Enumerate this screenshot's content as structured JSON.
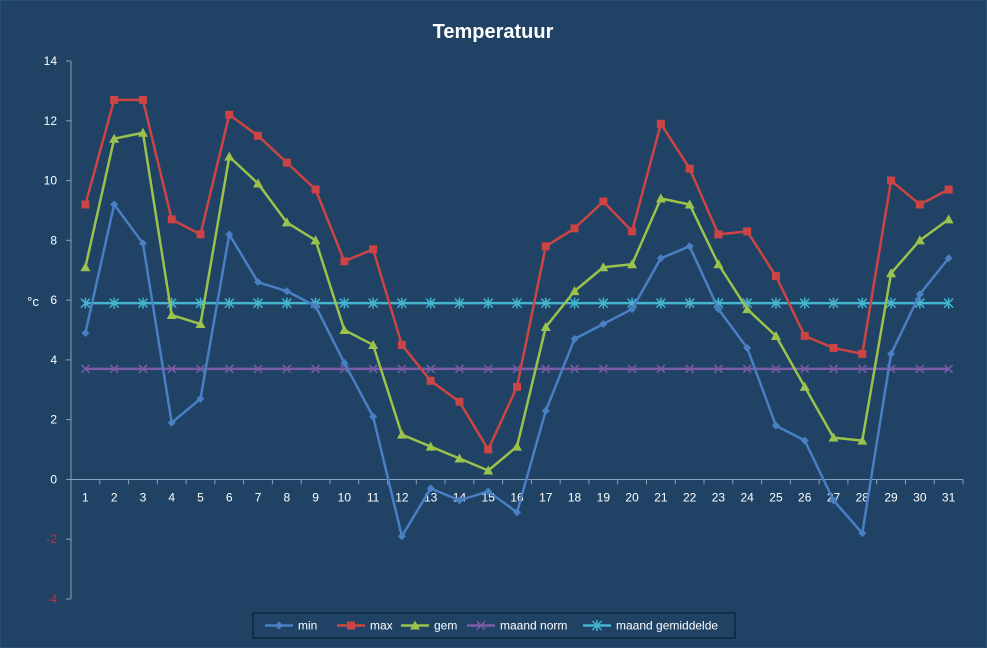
{
  "chart_data": {
    "type": "line",
    "title": "Temperatuur",
    "xlabel": "",
    "ylabel": "°c",
    "ylim": [
      -4,
      14
    ],
    "yticks": [
      -4,
      -2,
      0,
      2,
      4,
      6,
      8,
      10,
      12,
      14
    ],
    "grid": false,
    "legend": "bottom",
    "categories": [
      "1",
      "2",
      "3",
      "4",
      "5",
      "6",
      "7",
      "8",
      "9",
      "10",
      "11",
      "12",
      "13",
      "14",
      "15",
      "16",
      "17",
      "18",
      "19",
      "20",
      "21",
      "22",
      "23",
      "24",
      "25",
      "26",
      "27",
      "28",
      "29",
      "30",
      "31"
    ],
    "series": [
      {
        "name": "min",
        "color": "#4a7fc4",
        "marker": "diamond",
        "values": [
          4.9,
          9.2,
          7.9,
          1.9,
          2.7,
          8.2,
          6.6,
          6.3,
          5.8,
          3.9,
          2.1,
          -1.9,
          -0.3,
          -0.7,
          -0.4,
          -1.1,
          2.3,
          4.7,
          5.2,
          5.7,
          7.4,
          7.8,
          5.7,
          4.4,
          1.8,
          1.3,
          -0.7,
          -1.8,
          4.2,
          6.2,
          7.4
        ]
      },
      {
        "name": "max",
        "color": "#cc4444",
        "marker": "square",
        "values": [
          9.2,
          12.7,
          12.7,
          8.7,
          8.2,
          12.2,
          11.5,
          10.6,
          9.7,
          7.3,
          7.7,
          4.5,
          3.3,
          2.6,
          1.0,
          3.1,
          7.8,
          8.4,
          9.3,
          8.3,
          11.9,
          10.4,
          8.2,
          8.3,
          6.8,
          4.8,
          4.4,
          4.2,
          10.0,
          9.2,
          9.7
        ]
      },
      {
        "name": "gem",
        "color": "#9bc24c",
        "marker": "triangle",
        "values": [
          7.1,
          11.4,
          11.6,
          5.5,
          5.2,
          10.8,
          9.9,
          8.6,
          8.0,
          5.0,
          4.5,
          1.5,
          1.1,
          0.7,
          0.3,
          1.1,
          5.1,
          6.3,
          7.1,
          7.2,
          9.4,
          9.2,
          7.2,
          5.7,
          4.8,
          3.1,
          1.4,
          1.3,
          6.9,
          8.0,
          8.7
        ]
      },
      {
        "name": "maand norm",
        "color": "#7c5ca8",
        "marker": "x",
        "values": [
          3.7,
          3.7,
          3.7,
          3.7,
          3.7,
          3.7,
          3.7,
          3.7,
          3.7,
          3.7,
          3.7,
          3.7,
          3.7,
          3.7,
          3.7,
          3.7,
          3.7,
          3.7,
          3.7,
          3.7,
          3.7,
          3.7,
          3.7,
          3.7,
          3.7,
          3.7,
          3.7,
          3.7,
          3.7,
          3.7,
          3.7
        ]
      },
      {
        "name": "maand gemiddelde",
        "color": "#45b4cf",
        "marker": "star",
        "values": [
          5.9,
          5.9,
          5.9,
          5.9,
          5.9,
          5.9,
          5.9,
          5.9,
          5.9,
          5.9,
          5.9,
          5.9,
          5.9,
          5.9,
          5.9,
          5.9,
          5.9,
          5.9,
          5.9,
          5.9,
          5.9,
          5.9,
          5.9,
          5.9,
          5.9,
          5.9,
          5.9,
          5.9,
          5.9,
          5.9,
          5.9
        ]
      }
    ]
  }
}
